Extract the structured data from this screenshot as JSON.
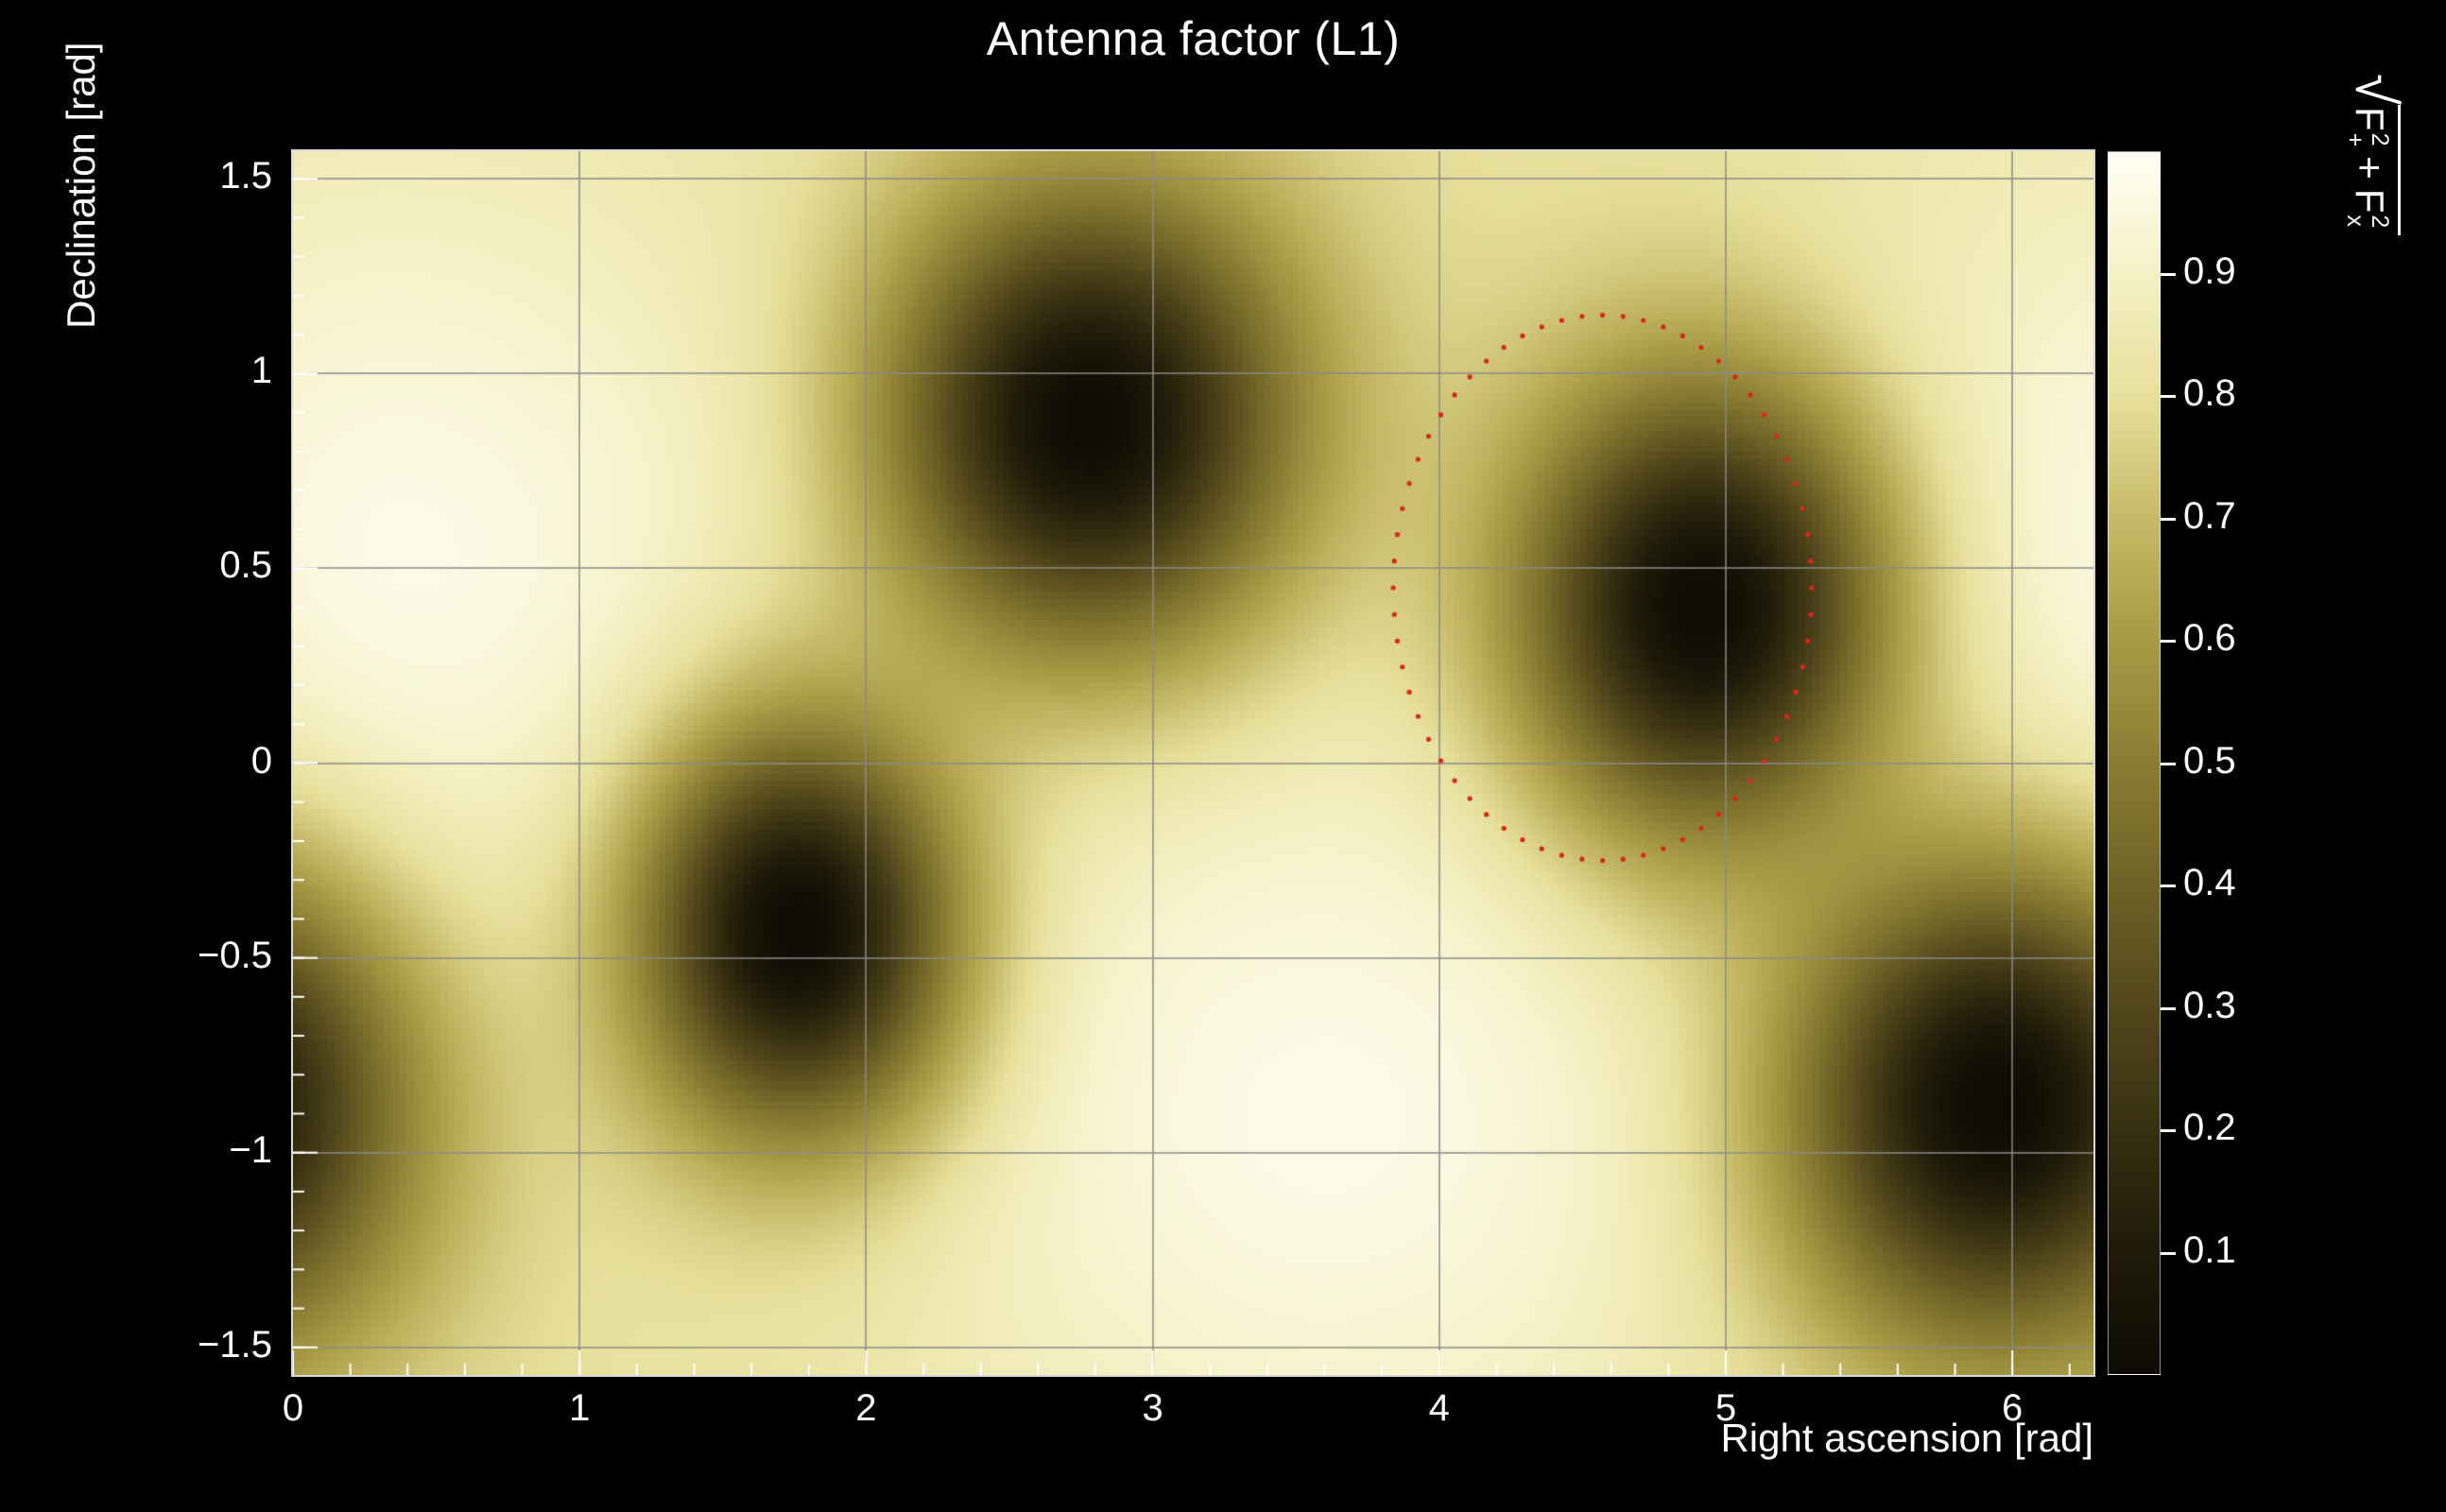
{
  "title": "Antenna factor (L1)",
  "axes": {
    "x_title": "Right ascension [rad]",
    "y_title": "Declination [rad]"
  },
  "colorbar_title": {
    "radical": "√",
    "term1": {
      "base": "F",
      "sup": "2",
      "sub": "+"
    },
    "operator": "+",
    "term2": {
      "base": "F",
      "sup": "2",
      "sub": "x"
    }
  },
  "chart_data": {
    "type": "heatmap",
    "title": "Antenna factor (L1)",
    "xlabel": "Right ascension [rad]",
    "ylabel": "Declination [rad]",
    "zlabel": "sqrt(F+^2 + Fx^2)",
    "xlim": [
      0,
      6.28319
    ],
    "ylim": [
      -1.5708,
      1.5708
    ],
    "zlim": [
      0,
      1
    ],
    "grid": true,
    "x_ticks": {
      "values": [
        0,
        1,
        2,
        3,
        4,
        5,
        6
      ],
      "labels": [
        "0",
        "1",
        "2",
        "3",
        "4",
        "5",
        "6"
      ],
      "minor_step": 0.2
    },
    "y_ticks": {
      "values": [
        -1.5,
        -1,
        -0.5,
        0,
        0.5,
        1,
        1.5
      ],
      "labels": [
        "−1.5",
        "−1",
        "−0.5",
        "0",
        "0.5",
        "1",
        "1.5"
      ],
      "minor_step": 0.1
    },
    "z_ticks": {
      "values": [
        0.1,
        0.2,
        0.3,
        0.4,
        0.5,
        0.6,
        0.7,
        0.8,
        0.9
      ],
      "labels": [
        "0.1",
        "0.2",
        "0.3",
        "0.4",
        "0.5",
        "0.6",
        "0.7",
        "0.8",
        "0.9"
      ]
    },
    "bins": {
      "nx": 256,
      "ny": 175
    },
    "colormap": [
      [
        0.0,
        "#0d0b04"
      ],
      [
        0.1,
        "#1f1a09"
      ],
      [
        0.2,
        "#373011"
      ],
      [
        0.3,
        "#52471b"
      ],
      [
        0.4,
        "#6e6226"
      ],
      [
        0.5,
        "#8a7d33"
      ],
      [
        0.6,
        "#a79a46"
      ],
      [
        0.7,
        "#c6ba68"
      ],
      [
        0.8,
        "#e7e09c"
      ],
      [
        0.88,
        "#f2edbc"
      ],
      [
        0.94,
        "#f9f6d8"
      ],
      [
        1.0,
        "#fffef4"
      ]
    ],
    "field": {
      "base_level": 0.8,
      "maxima": [
        {
          "ra": 0.35,
          "dec": 0.5,
          "amp": 0.17,
          "sigma_ra": 1.1,
          "sigma_dec": 0.8
        },
        {
          "ra": 3.6,
          "dec": -0.9,
          "amp": 0.17,
          "sigma_ra": 1.1,
          "sigma_dec": 0.8
        }
      ],
      "nulls": [
        {
          "ra": 2.78,
          "dec": 0.88,
          "sigma_ra": 0.5,
          "sigma_dec": 0.42
        },
        {
          "ra": 4.92,
          "dec": 0.4,
          "sigma_ra": 0.46,
          "sigma_dec": 0.42
        },
        {
          "ra": 1.76,
          "dec": -0.43,
          "sigma_ra": 0.4,
          "sigma_dec": 0.38
        },
        {
          "ra": 5.95,
          "dec": -0.88,
          "sigma_ra": 0.52,
          "sigma_dec": 0.44
        }
      ]
    },
    "contour": {
      "shape": "dotted-ellipse",
      "color": "#d8281e",
      "ra_center": 4.57,
      "dec_center": 0.45,
      "ra_radius": 0.73,
      "dec_radius": 0.7,
      "n_dots": 64,
      "dot_radius_px": 2.6
    },
    "colors": {
      "background": "#000000",
      "text": "#ffffff",
      "grid": "#8a8a8a",
      "tick": "#ffffff"
    }
  }
}
